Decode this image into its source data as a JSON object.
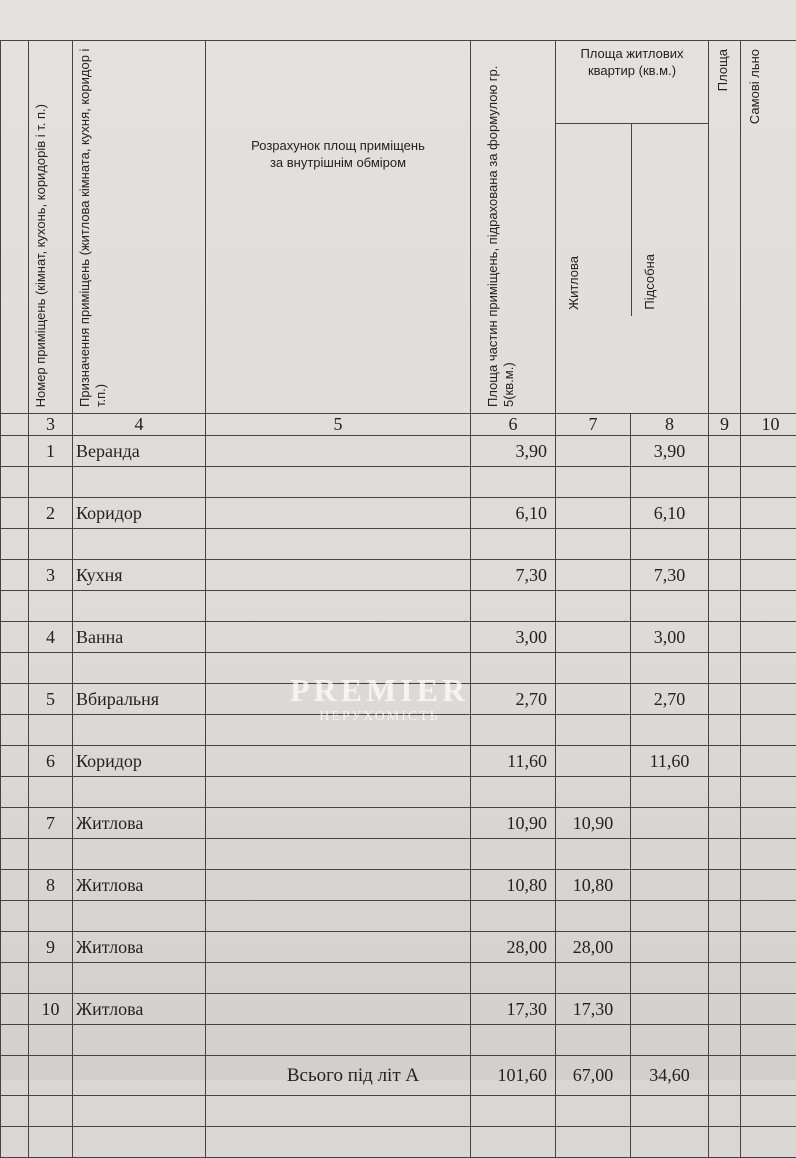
{
  "header": {
    "col3": "Номер приміщень (кімнат, кухонь, коридорів і т. п.)",
    "col4": "Призначення приміщень (житлова кімната, кухня, коридор і т.п.)",
    "col5": "Розрахунок площ приміщень за внутрішнім обміром",
    "col6": "Площа частин приміщень, підрахована за формулою гр. 5(кв.м.)",
    "group78": "Площа житлових квартир (кв.м.)",
    "col7": "Житлова",
    "col8": "Підсобна",
    "col9": "Площа",
    "col10": "Самові льно"
  },
  "col_numbers": [
    "3",
    "4",
    "5",
    "6",
    "7",
    "8",
    "9",
    "10"
  ],
  "rows": [
    {
      "num": "1",
      "name": "Веранда",
      "total": "3,90",
      "living": "",
      "aux": "3,90"
    },
    {
      "num": "2",
      "name": "Коридор",
      "total": "6,10",
      "living": "",
      "aux": "6,10"
    },
    {
      "num": "3",
      "name": "Кухня",
      "total": "7,30",
      "living": "",
      "aux": "7,30"
    },
    {
      "num": "4",
      "name": "Ванна",
      "total": "3,00",
      "living": "",
      "aux": "3,00"
    },
    {
      "num": "5",
      "name": "Вбиральня",
      "total": "2,70",
      "living": "",
      "aux": "2,70"
    },
    {
      "num": "6",
      "name": "Коридор",
      "total": "11,60",
      "living": "",
      "aux": "11,60"
    },
    {
      "num": "7",
      "name": "Житлова",
      "total": "10,90",
      "living": "10,90",
      "aux": ""
    },
    {
      "num": "8",
      "name": "Житлова",
      "total": "10,80",
      "living": "10,80",
      "aux": ""
    },
    {
      "num": "9",
      "name": "Житлова",
      "total": "28,00",
      "living": "28,00",
      "aux": ""
    },
    {
      "num": "10",
      "name": "Житлова",
      "total": "17,30",
      "living": "17,30",
      "aux": ""
    }
  ],
  "summary": {
    "label": "Всього під літ А",
    "total": "101,60",
    "living": "67,00",
    "aux": "34,60"
  },
  "watermark": {
    "brand": "PREMIER",
    "sub": "НЕРУХОМІСТЬ"
  }
}
